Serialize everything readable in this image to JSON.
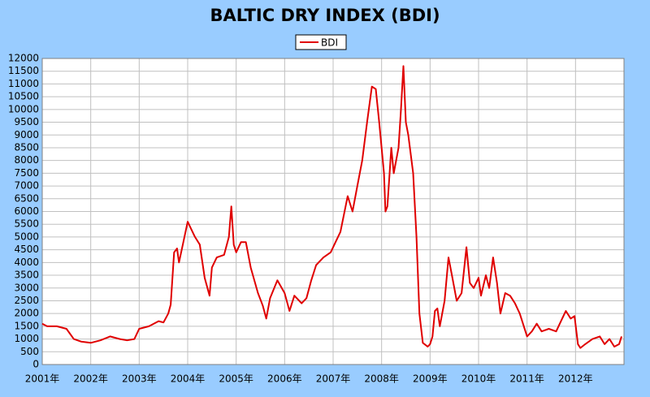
{
  "chart_data": {
    "type": "line",
    "title": "BALTIC DRY INDEX (BDI)",
    "x": [
      2001.0,
      2001.1,
      2001.3,
      2001.5,
      2001.65,
      2001.8,
      2002.0,
      2002.2,
      2002.4,
      2002.6,
      2002.75,
      2002.9,
      2003.0,
      2003.2,
      2003.4,
      2003.5,
      2003.6,
      2003.65,
      2003.72,
      2003.78,
      2003.82,
      2003.9,
      2004.0,
      2004.05,
      2004.15,
      2004.25,
      2004.35,
      2004.45,
      2004.5,
      2004.6,
      2004.75,
      2004.85,
      2004.9,
      2004.95,
      2005.0,
      2005.1,
      2005.2,
      2005.3,
      2005.45,
      2005.55,
      2005.62,
      2005.7,
      2005.85,
      2006.0,
      2006.1,
      2006.2,
      2006.35,
      2006.45,
      2006.55,
      2006.65,
      2006.8,
      2006.95,
      2007.05,
      2007.15,
      2007.3,
      2007.4,
      2007.5,
      2007.6,
      2007.7,
      2007.8,
      2007.88,
      2007.95,
      2008.05,
      2008.08,
      2008.12,
      2008.2,
      2008.25,
      2008.35,
      2008.4,
      2008.45,
      2008.5,
      2008.55,
      2008.65,
      2008.72,
      2008.78,
      2008.85,
      2008.95,
      2009.0,
      2009.05,
      2009.1,
      2009.15,
      2009.2,
      2009.3,
      2009.38,
      2009.45,
      2009.55,
      2009.65,
      2009.75,
      2009.82,
      2009.9,
      2010.0,
      2010.05,
      2010.15,
      2010.22,
      2010.3,
      2010.38,
      2010.45,
      2010.55,
      2010.65,
      2010.75,
      2010.85,
      2011.0,
      2011.1,
      2011.2,
      2011.3,
      2011.45,
      2011.6,
      2011.75,
      2011.8,
      2011.9,
      2011.98,
      2012.05,
      2012.1,
      2012.2,
      2012.35,
      2012.5,
      2012.6,
      2012.7,
      2012.8,
      2012.9,
      2012.95
    ],
    "series": [
      {
        "name": "BDI",
        "color": "#e00000",
        "values": [
          1600,
          1500,
          1500,
          1400,
          1000,
          900,
          850,
          950,
          1100,
          1000,
          950,
          1000,
          1400,
          1500,
          1700,
          1650,
          2000,
          2350,
          4400,
          4550,
          4000,
          4700,
          5600,
          5400,
          5000,
          4700,
          3400,
          2700,
          3800,
          4200,
          4300,
          5000,
          6200,
          4700,
          4400,
          4800,
          4800,
          3800,
          2800,
          2300,
          1800,
          2600,
          3300,
          2800,
          2100,
          2700,
          2400,
          2600,
          3300,
          3900,
          4200,
          4400,
          4800,
          5200,
          6600,
          6000,
          7000,
          8000,
          9500,
          10900,
          10800,
          9500,
          7500,
          6000,
          6200,
          8500,
          7500,
          8500,
          10000,
          11700,
          9500,
          9000,
          7500,
          5000,
          2000,
          850,
          700,
          800,
          1100,
          2100,
          2200,
          1500,
          2500,
          4200,
          3500,
          2500,
          2800,
          4600,
          3200,
          3000,
          3400,
          2700,
          3500,
          3000,
          4200,
          3200,
          2000,
          2800,
          2700,
          2400,
          2000,
          1100,
          1300,
          1600,
          1300,
          1400,
          1300,
          1900,
          2100,
          1800,
          1900,
          800,
          650,
          800,
          1000,
          1100,
          800,
          1000,
          700,
          800,
          1100
        ]
      }
    ],
    "xlim": [
      2001,
      2013
    ],
    "xticks": [
      {
        "value": 2001,
        "label": "2001年"
      },
      {
        "value": 2002,
        "label": "2002年"
      },
      {
        "value": 2003,
        "label": "2003年"
      },
      {
        "value": 2004,
        "label": "2004年"
      },
      {
        "value": 2005,
        "label": "2005年"
      },
      {
        "value": 2006,
        "label": "2006年"
      },
      {
        "value": 2007,
        "label": "2007年"
      },
      {
        "value": 2008,
        "label": "2008年"
      },
      {
        "value": 2009,
        "label": "2009年"
      },
      {
        "value": 2010,
        "label": "2010年"
      },
      {
        "value": 2011,
        "label": "2011年"
      },
      {
        "value": 2012,
        "label": "2012年"
      }
    ],
    "ylim": [
      0,
      12000
    ],
    "yticks": [
      0,
      500,
      1000,
      1500,
      2000,
      2500,
      3000,
      3500,
      4000,
      4500,
      5000,
      5500,
      6000,
      6500,
      7000,
      7500,
      8000,
      8500,
      9000,
      9500,
      10000,
      10500,
      11000,
      11500,
      12000
    ],
    "grid": true,
    "legend": "top"
  }
}
